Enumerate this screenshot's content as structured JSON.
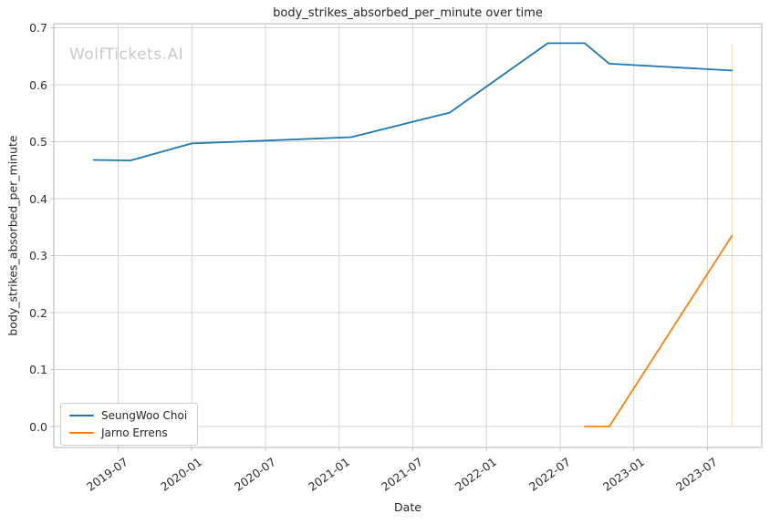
{
  "watermark": {
    "text": "WolfTickets.AI"
  },
  "chart_data": {
    "type": "line",
    "title": "body_strikes_absorbed_per_minute over time",
    "xlabel": "Date",
    "ylabel": "body_strikes_absorbed_per_minute",
    "x_tick_labels": [
      "2019-07",
      "2020-01",
      "2020-07",
      "2021-01",
      "2021-07",
      "2022-01",
      "2022-07",
      "2023-01",
      "2023-07"
    ],
    "y_tick_labels": [
      "0.0",
      "0.1",
      "0.2",
      "0.3",
      "0.4",
      "0.5",
      "0.6",
      "0.7"
    ],
    "ylim": [
      -0.036,
      0.708
    ],
    "grid": true,
    "legend": {
      "position": "lower-left"
    },
    "series": [
      {
        "name": "SeungWoo Choi",
        "color": "#1f77b4",
        "points": [
          [
            "2019-05",
            0.468
          ],
          [
            "2019-08",
            0.467
          ],
          [
            "2020-01",
            0.497
          ],
          [
            "2020-07",
            0.502
          ],
          [
            "2021-02",
            0.508
          ],
          [
            "2021-07",
            0.535
          ],
          [
            "2021-10",
            0.551
          ],
          [
            "2022-06",
            0.673
          ],
          [
            "2022-09",
            0.673
          ],
          [
            "2022-11",
            0.637
          ],
          [
            "2023-09",
            0.625
          ]
        ]
      },
      {
        "name": "Jarno Errens",
        "color": "#ff7f0e",
        "points": [
          [
            "2022-09",
            0.0
          ],
          [
            "2022-11",
            0.0
          ],
          [
            "2023-09",
            0.335
          ]
        ]
      }
    ],
    "annotations": [
      {
        "type": "vline",
        "x": "2023-09",
        "y_from": 0.0,
        "y_to": 0.673,
        "color": "#ff7f0e",
        "opacity": 0.25
      }
    ]
  },
  "colors": {
    "accent_blue": "#1f77b4",
    "accent_orange": "#ff7f0e",
    "grid": "#d5d5d5",
    "spine": "#c0c0c0",
    "tick": "#bdbdbd",
    "text": "#262626",
    "watermark": "#c9c9c9",
    "background": "#ffffff"
  }
}
